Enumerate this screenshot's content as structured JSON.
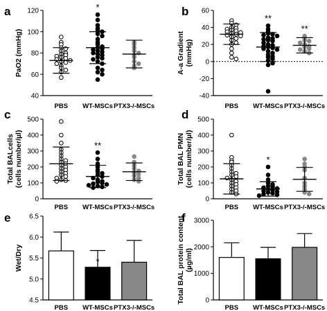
{
  "colors": {
    "axis": "#000000",
    "dot_black": "#000000",
    "dot_gray": "#888888",
    "bar_gray": "#888888",
    "bar_black": "#000000",
    "bar_white": "#ffffff"
  },
  "chart_data": [
    {
      "panel": "a",
      "type": "scatter",
      "ylabel": "PaO2 (mmHg)",
      "ylim": [
        40,
        120
      ],
      "yticks": [
        "40",
        "60",
        "80",
        "100",
        "120"
      ],
      "categories": [
        "PBS",
        "WT-MSCs",
        "PTX3-/-MSCs"
      ],
      "series": [
        {
          "values": [
            95,
            90,
            88,
            85,
            84,
            82,
            80,
            79,
            78,
            77,
            76,
            75,
            74,
            73,
            72,
            71,
            70,
            68,
            66,
            64,
            62,
            57
          ],
          "mean": 73,
          "sd": 12,
          "marker": "open-circle"
        },
        {
          "values": [
            116,
            111,
            106,
            103,
            101,
            100,
            98,
            96,
            93,
            90,
            88,
            86,
            85,
            84,
            83,
            82,
            81,
            80,
            79,
            78,
            76,
            75,
            74,
            72,
            70,
            66,
            64,
            62,
            60,
            55
          ],
          "mean": 85,
          "sd": 15,
          "marker": "filled-circle"
        },
        {
          "values": [
            90,
            88,
            85,
            82,
            80,
            78,
            76,
            72,
            70,
            68,
            66
          ],
          "mean": 79,
          "sd": 13,
          "marker": "gray-circle"
        }
      ],
      "annotations": [
        "",
        "*",
        ""
      ]
    },
    {
      "panel": "b",
      "type": "scatter",
      "ylabel": "A-a Gradient (mmHg)",
      "ylim": [
        -40,
        60
      ],
      "yticks": [
        "-40",
        "-20",
        "0",
        "20",
        "40",
        "60"
      ],
      "categories": [
        "PBS",
        "WT-MSCs",
        "PTX3-/-MSCs"
      ],
      "reference_line": 0,
      "series": [
        {
          "values": [
            48,
            45,
            43,
            40,
            39,
            38,
            37,
            36,
            35,
            34,
            33,
            32,
            31,
            30,
            29,
            27,
            25,
            22,
            20,
            15,
            10,
            5,
            3
          ],
          "mean": 32,
          "sd": 12,
          "marker": "open-circle"
        },
        {
          "values": [
            42,
            38,
            35,
            33,
            32,
            31,
            30,
            28,
            27,
            26,
            25,
            24,
            22,
            20,
            19,
            18,
            17,
            16,
            15,
            14,
            12,
            10,
            8,
            6,
            5,
            3,
            1,
            -2,
            -4,
            -35
          ],
          "mean": 17,
          "sd": 17,
          "marker": "filled-circle"
        },
        {
          "values": [
            30,
            28,
            25,
            24,
            22,
            20,
            18,
            17,
            15,
            14,
            12,
            10
          ],
          "mean": 19,
          "sd": 9,
          "marker": "gray-circle"
        }
      ],
      "annotations": [
        "",
        "**",
        "**"
      ]
    },
    {
      "panel": "c",
      "type": "scatter",
      "ylabel": "Total BALcells (cells number/µl)",
      "ylim": [
        0,
        500
      ],
      "yticks": [
        "0",
        "100",
        "200",
        "300",
        "400",
        "500"
      ],
      "categories": [
        "PBS",
        "WT-MSCs",
        "PTX3-/-MSCs"
      ],
      "series": [
        {
          "values": [
            485,
            400,
            350,
            310,
            290,
            270,
            250,
            240,
            230,
            220,
            210,
            200,
            190,
            180,
            170,
            160,
            150,
            140,
            130,
            120,
            115,
            110
          ],
          "mean": 220,
          "sd": 105,
          "marker": "open-circle"
        },
        {
          "values": [
            290,
            250,
            220,
            200,
            180,
            170,
            160,
            150,
            140,
            130,
            120,
            110,
            105,
            100,
            95,
            90,
            85,
            80,
            75,
            70
          ],
          "mean": 140,
          "sd": 70,
          "marker": "filled-circle"
        },
        {
          "values": [
            265,
            230,
            210,
            190,
            175,
            165,
            155,
            145,
            130,
            120,
            110
          ],
          "mean": 170,
          "sd": 55,
          "marker": "gray-circle"
        }
      ],
      "annotations": [
        "",
        "**",
        ""
      ]
    },
    {
      "panel": "d",
      "type": "scatter",
      "ylabel": "Total BAL PMN (cells number/µl)",
      "ylim": [
        0,
        500
      ],
      "yticks": [
        "0",
        "100",
        "200",
        "300",
        "400",
        "500"
      ],
      "categories": [
        "PBS",
        "WT-MSCs",
        "PTX3-/-MSCs"
      ],
      "series": [
        {
          "values": [
            400,
            260,
            240,
            230,
            210,
            190,
            170,
            160,
            150,
            140,
            130,
            120,
            110,
            100,
            90,
            80,
            70,
            60,
            50,
            40,
            30
          ],
          "mean": 125,
          "sd": 95,
          "marker": "open-circle"
        },
        {
          "values": [
            200,
            150,
            120,
            100,
            90,
            80,
            75,
            70,
            65,
            60,
            55,
            50,
            45,
            40,
            35,
            30,
            25,
            20
          ],
          "mean": 62,
          "sd": 45,
          "marker": "filled-circle"
        },
        {
          "values": [
            250,
            220,
            200,
            180,
            130,
            100,
            80,
            60,
            40,
            30
          ],
          "mean": 122,
          "sd": 75,
          "marker": "gray-circle"
        }
      ],
      "annotations": [
        "",
        "*",
        ""
      ]
    },
    {
      "panel": "e",
      "type": "bar",
      "ylabel": "Wet/Dry",
      "ylim": [
        4.5,
        6.5
      ],
      "yticks": [
        "4.5",
        "5.0",
        "5.5",
        "6.0",
        "6.5"
      ],
      "categories": [
        "PBS",
        "WT-MSCs",
        "PTX3-/-MSCs"
      ],
      "values": [
        5.67,
        5.28,
        5.4
      ],
      "errors": [
        0.45,
        0.4,
        0.52
      ],
      "bar_colors": [
        "white",
        "black",
        "gray"
      ],
      "annotations": [
        "",
        "*",
        ""
      ]
    },
    {
      "panel": "f",
      "type": "bar",
      "ylabel": "Total BAL protein content (µg/ml)",
      "ylim": [
        0,
        3000
      ],
      "yticks": [
        "0",
        "1000",
        "2000",
        "3000"
      ],
      "categories": [
        "PBS",
        "WT-MSCs",
        "PTX3-/-MSCs"
      ],
      "values": [
        1600,
        1550,
        1980
      ],
      "errors": [
        550,
        430,
        520
      ],
      "bar_colors": [
        "white",
        "black",
        "gray"
      ],
      "annotations": [
        "",
        "",
        ""
      ]
    }
  ]
}
